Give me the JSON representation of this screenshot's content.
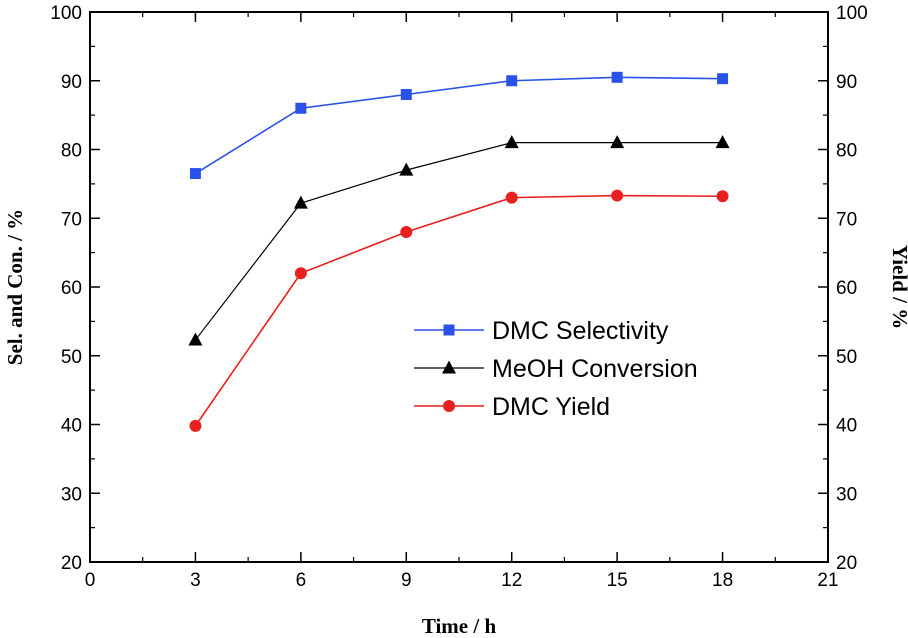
{
  "chart_data": {
    "type": "line",
    "xlabel": "Time / h",
    "ylabel": "Sel. and Con. / %",
    "y2label": "Yield / %",
    "xlim": [
      0,
      21
    ],
    "ylim": [
      20,
      100
    ],
    "y2lim": [
      20,
      100
    ],
    "xticks": [
      0,
      3,
      6,
      9,
      12,
      15,
      18,
      21
    ],
    "yticks": [
      20,
      30,
      40,
      50,
      60,
      70,
      80,
      90,
      100
    ],
    "grid": false,
    "legend_position": "center-right",
    "x": [
      3,
      6,
      9,
      12,
      15,
      18
    ],
    "series": [
      {
        "name": "DMC Selectivity",
        "values": [
          76.5,
          86,
          88,
          90,
          90.5,
          90.3
        ],
        "color": "#2a52e8",
        "marker": "square",
        "axis": "left"
      },
      {
        "name": "MeOH Conversion",
        "values": [
          52.3,
          72.2,
          77,
          81,
          81,
          81
        ],
        "color": "#000000",
        "marker": "triangle",
        "axis": "left"
      },
      {
        "name": "DMC Yield",
        "values": [
          39.8,
          62,
          68,
          73,
          73.3,
          73.2
        ],
        "color": "#e8201e",
        "marker": "circle",
        "axis": "right"
      }
    ]
  }
}
